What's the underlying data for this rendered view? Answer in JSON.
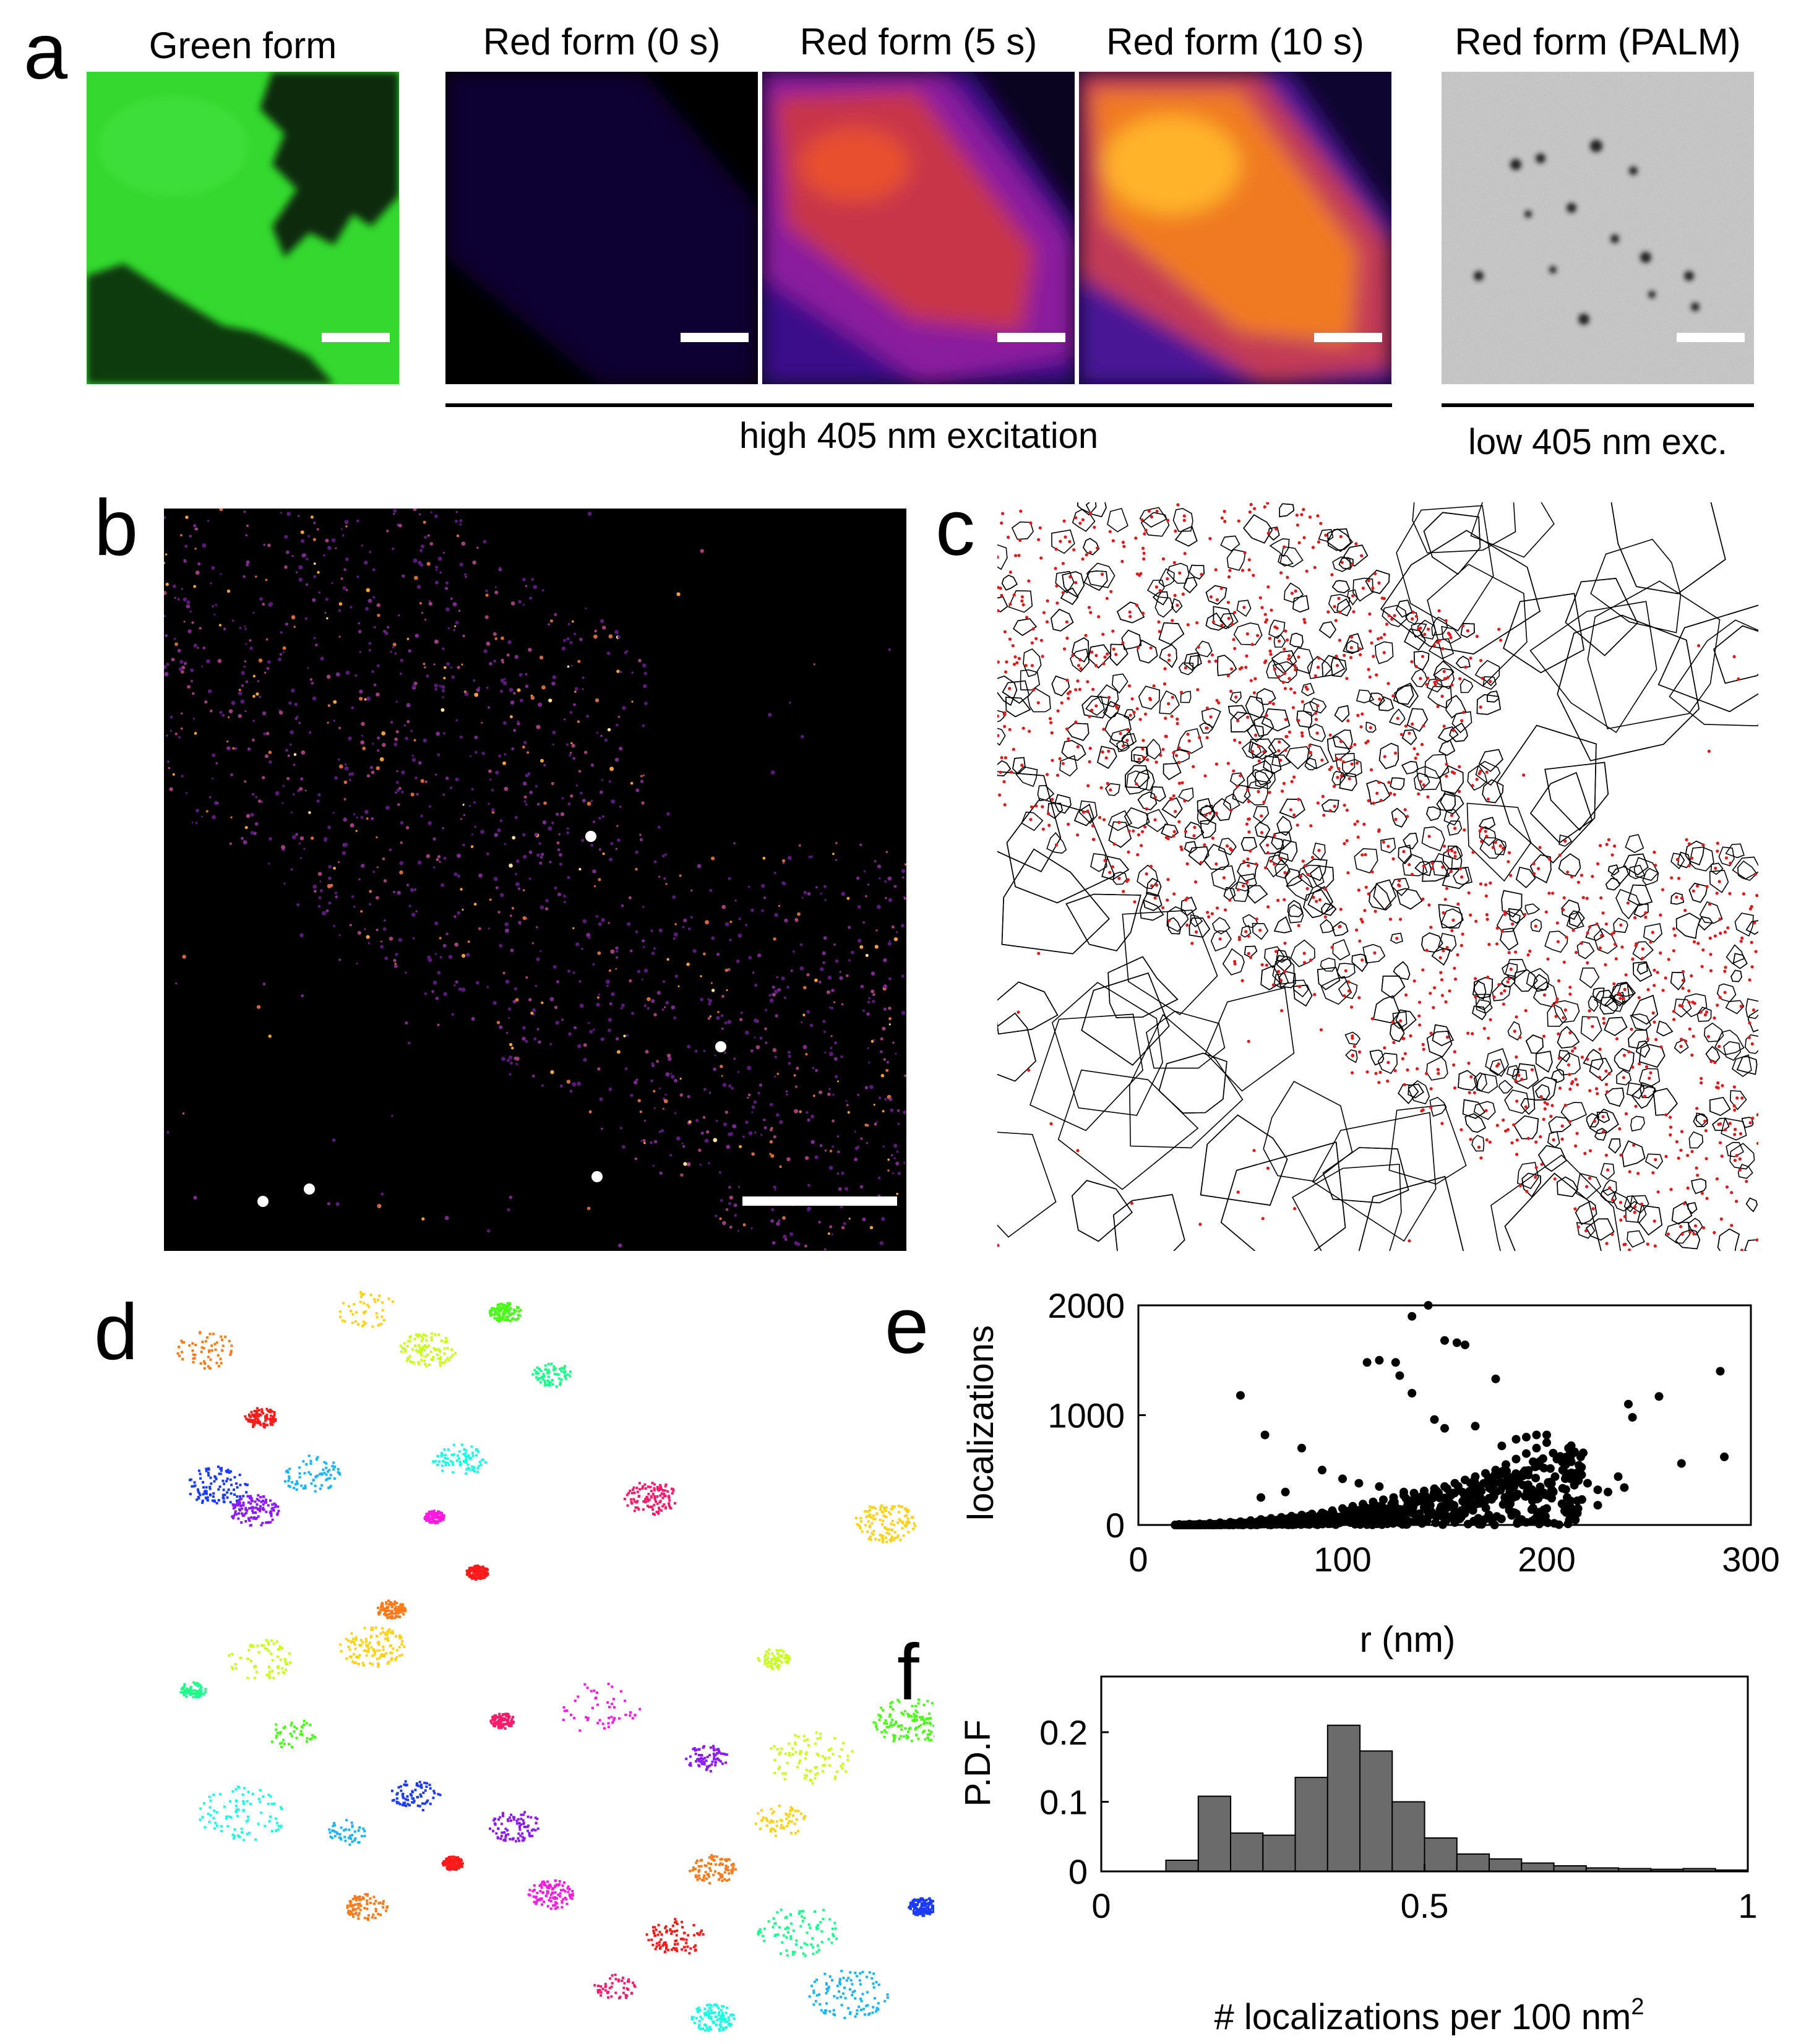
{
  "panels": {
    "a": {
      "letter": "a",
      "titles": [
        "Green form",
        "Red form (0 s)",
        "Red form (5 s)",
        "Red form (10 s)",
        "Red form (PALM)"
      ],
      "bracket_labels": [
        "high 405 nm excitation",
        "low 405 nm exc."
      ],
      "colors": {
        "green": "#2fd62a",
        "fire_dark": "#1c0a52",
        "fire_mid": "#d83a34",
        "fire_hot": "#ffb21a"
      }
    },
    "b": {
      "letter": "b"
    },
    "c": {
      "letter": "c"
    },
    "d": {
      "letter": "d"
    },
    "e": {
      "letter": "e"
    },
    "f": {
      "letter": "f"
    }
  },
  "chart_data": [
    {
      "panel": "e",
      "type": "scatter",
      "xlabel": "r (nm)",
      "ylabel": "localizations",
      "xlim": [
        0,
        300
      ],
      "ylim": [
        0,
        2000
      ],
      "xticks": [
        0,
        100,
        200,
        300
      ],
      "yticks": [
        0,
        1000,
        2000
      ],
      "grid": false,
      "points": [
        [
          20,
          5
        ],
        [
          25,
          8
        ],
        [
          30,
          10
        ],
        [
          35,
          15
        ],
        [
          40,
          20
        ],
        [
          45,
          25
        ],
        [
          50,
          30
        ],
        [
          55,
          40
        ],
        [
          60,
          50
        ],
        [
          65,
          60
        ],
        [
          70,
          70
        ],
        [
          75,
          80
        ],
        [
          80,
          90
        ],
        [
          85,
          100
        ],
        [
          90,
          110
        ],
        [
          95,
          130
        ],
        [
          100,
          150
        ],
        [
          105,
          170
        ],
        [
          110,
          190
        ],
        [
          115,
          210
        ],
        [
          120,
          230
        ],
        [
          125,
          250
        ],
        [
          130,
          270
        ],
        [
          135,
          290
        ],
        [
          140,
          310
        ],
        [
          145,
          330
        ],
        [
          150,
          350
        ],
        [
          155,
          380
        ],
        [
          160,
          410
        ],
        [
          165,
          440
        ],
        [
          170,
          470
        ],
        [
          175,
          500
        ],
        [
          180,
          550
        ],
        [
          185,
          600
        ],
        [
          190,
          650
        ],
        [
          195,
          700
        ],
        [
          200,
          750
        ],
        [
          190,
          800
        ],
        [
          185,
          780
        ],
        [
          178,
          720
        ],
        [
          50,
          1180
        ],
        [
          62,
          820
        ],
        [
          80,
          700
        ],
        [
          90,
          500
        ],
        [
          100,
          420
        ],
        [
          108,
          380
        ],
        [
          118,
          350
        ],
        [
          130,
          300
        ],
        [
          60,
          250
        ],
        [
          72,
          300
        ],
        [
          112,
          1480
        ],
        [
          118,
          1500
        ],
        [
          126,
          1480
        ],
        [
          128,
          1360
        ],
        [
          134,
          1200
        ],
        [
          134,
          1900
        ],
        [
          142,
          2000
        ],
        [
          150,
          1680
        ],
        [
          156,
          1660
        ],
        [
          160,
          1640
        ],
        [
          175,
          1330
        ],
        [
          145,
          960
        ],
        [
          150,
          880
        ],
        [
          165,
          900
        ],
        [
          195,
          820
        ],
        [
          200,
          820
        ],
        [
          205,
          600
        ],
        [
          215,
          460
        ],
        [
          220,
          380
        ],
        [
          230,
          300
        ],
        [
          238,
          340
        ],
        [
          240,
          1100
        ],
        [
          242,
          980
        ],
        [
          255,
          1170
        ],
        [
          266,
          560
        ],
        [
          285,
          1400
        ],
        [
          287,
          620
        ],
        [
          210,
          250
        ],
        [
          225,
          320
        ],
        [
          235,
          440
        ],
        [
          195,
          300
        ],
        [
          185,
          260
        ],
        [
          170,
          220
        ],
        [
          160,
          200
        ],
        [
          150,
          180
        ],
        [
          140,
          160
        ],
        [
          130,
          140
        ],
        [
          120,
          120
        ],
        [
          110,
          100
        ],
        [
          100,
          80
        ],
        [
          90,
          60
        ],
        [
          80,
          40
        ],
        [
          70,
          30
        ],
        [
          60,
          20
        ],
        [
          50,
          15
        ],
        [
          40,
          10
        ],
        [
          30,
          8
        ],
        [
          200,
          150
        ],
        [
          215,
          220
        ],
        [
          225,
          180
        ]
      ]
    },
    {
      "panel": "f",
      "type": "bar",
      "xlabel": "# localizations per 100 nm",
      "xlabel_superscript": "2",
      "ylabel": "P.D.F",
      "xlim": [
        0,
        1
      ],
      "ylim": [
        0,
        0.28
      ],
      "xticks": [
        "0",
        "0.5",
        "1"
      ],
      "yticks": [
        "0",
        "0.1",
        "0.2"
      ],
      "bin_edges": [
        0,
        0.05,
        0.1,
        0.15,
        0.2,
        0.25,
        0.3,
        0.35,
        0.4,
        0.45,
        0.5,
        0.55,
        0.6,
        0.65,
        0.7,
        0.75,
        0.8,
        0.85,
        0.9,
        0.95,
        1.0
      ],
      "values": [
        0,
        0,
        0.016,
        0.108,
        0.055,
        0.052,
        0.135,
        0.21,
        0.173,
        0.1,
        0.048,
        0.025,
        0.018,
        0.012,
        0.008,
        0.005,
        0.004,
        0.003,
        0.004,
        0.002
      ],
      "bar_color": "#6b6b6b"
    }
  ]
}
